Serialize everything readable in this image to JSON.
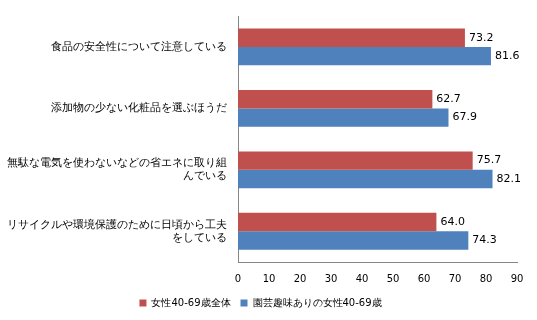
{
  "chart_data": {
    "type": "bar",
    "orientation": "horizontal",
    "categories": [
      "食品の安全性について注意している",
      "添加物の少ない化粧品を選ぶほうだ",
      "無駄な電気を使わないなどの省エネに取り組んでいる",
      "リサイクルや環境保護のために日頃から工夫をしている"
    ],
    "series": [
      {
        "name": "女性40-69歳全体",
        "color": "#c0504d",
        "values": [
          73.2,
          62.7,
          75.7,
          64.0
        ],
        "value_labels": [
          "73.2",
          "62.7",
          "75.7",
          "64.0"
        ]
      },
      {
        "name": "園芸趣味ありの女性40-69歳",
        "color": "#4f81bd",
        "values": [
          81.6,
          67.9,
          82.1,
          74.3
        ],
        "value_labels": [
          "81.6",
          "67.9",
          "82.1",
          "74.3"
        ]
      }
    ],
    "xlim": [
      0,
      90
    ],
    "xticks": [
      0,
      10,
      20,
      30,
      40,
      50,
      60,
      70,
      80,
      90
    ],
    "grid": false,
    "legend": "bottom",
    "data_labels": true
  }
}
